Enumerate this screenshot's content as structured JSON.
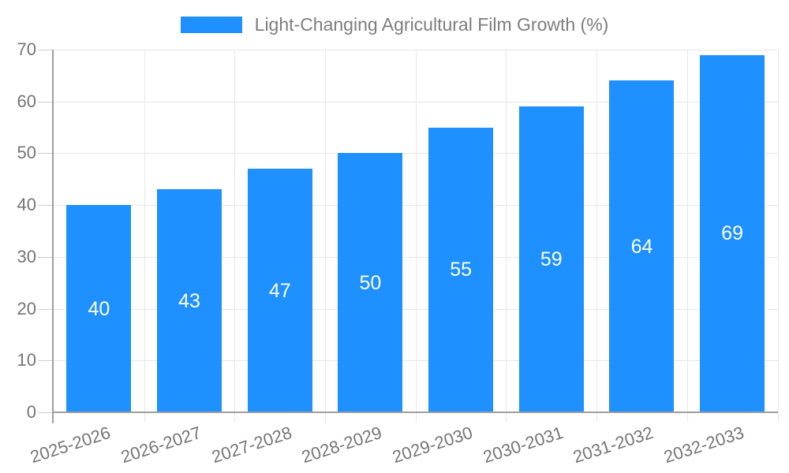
{
  "chart_data": {
    "type": "bar",
    "title": "Light-Changing Agricultural Film Growth (%)",
    "legend_label": "Light-Changing Agricultural Film Growth (%)",
    "legend_position": "top",
    "categories": [
      "2025-2026",
      "2026-2027",
      "2027-2028",
      "2028-2029",
      "2029-2030",
      "2030-2031",
      "2031-2032",
      "2032-2033"
    ],
    "values": [
      40,
      43,
      47,
      50,
      55,
      59,
      64,
      69
    ],
    "xlabel": "",
    "ylabel": "",
    "ylim": [
      0,
      70
    ],
    "yticks": [
      0,
      10,
      20,
      30,
      40,
      50,
      60,
      70
    ],
    "grid": true,
    "bar_color": "#1E90FF",
    "value_label_color": "#FFFFFF"
  },
  "colors": {
    "background": "#FFFFFF",
    "accent_blue": "#1E90FF",
    "grid_line": "#E7E7E8",
    "axis_line": "#9E9E9E",
    "tick_text": "#757575",
    "legend_text": "#7D7D7D"
  }
}
